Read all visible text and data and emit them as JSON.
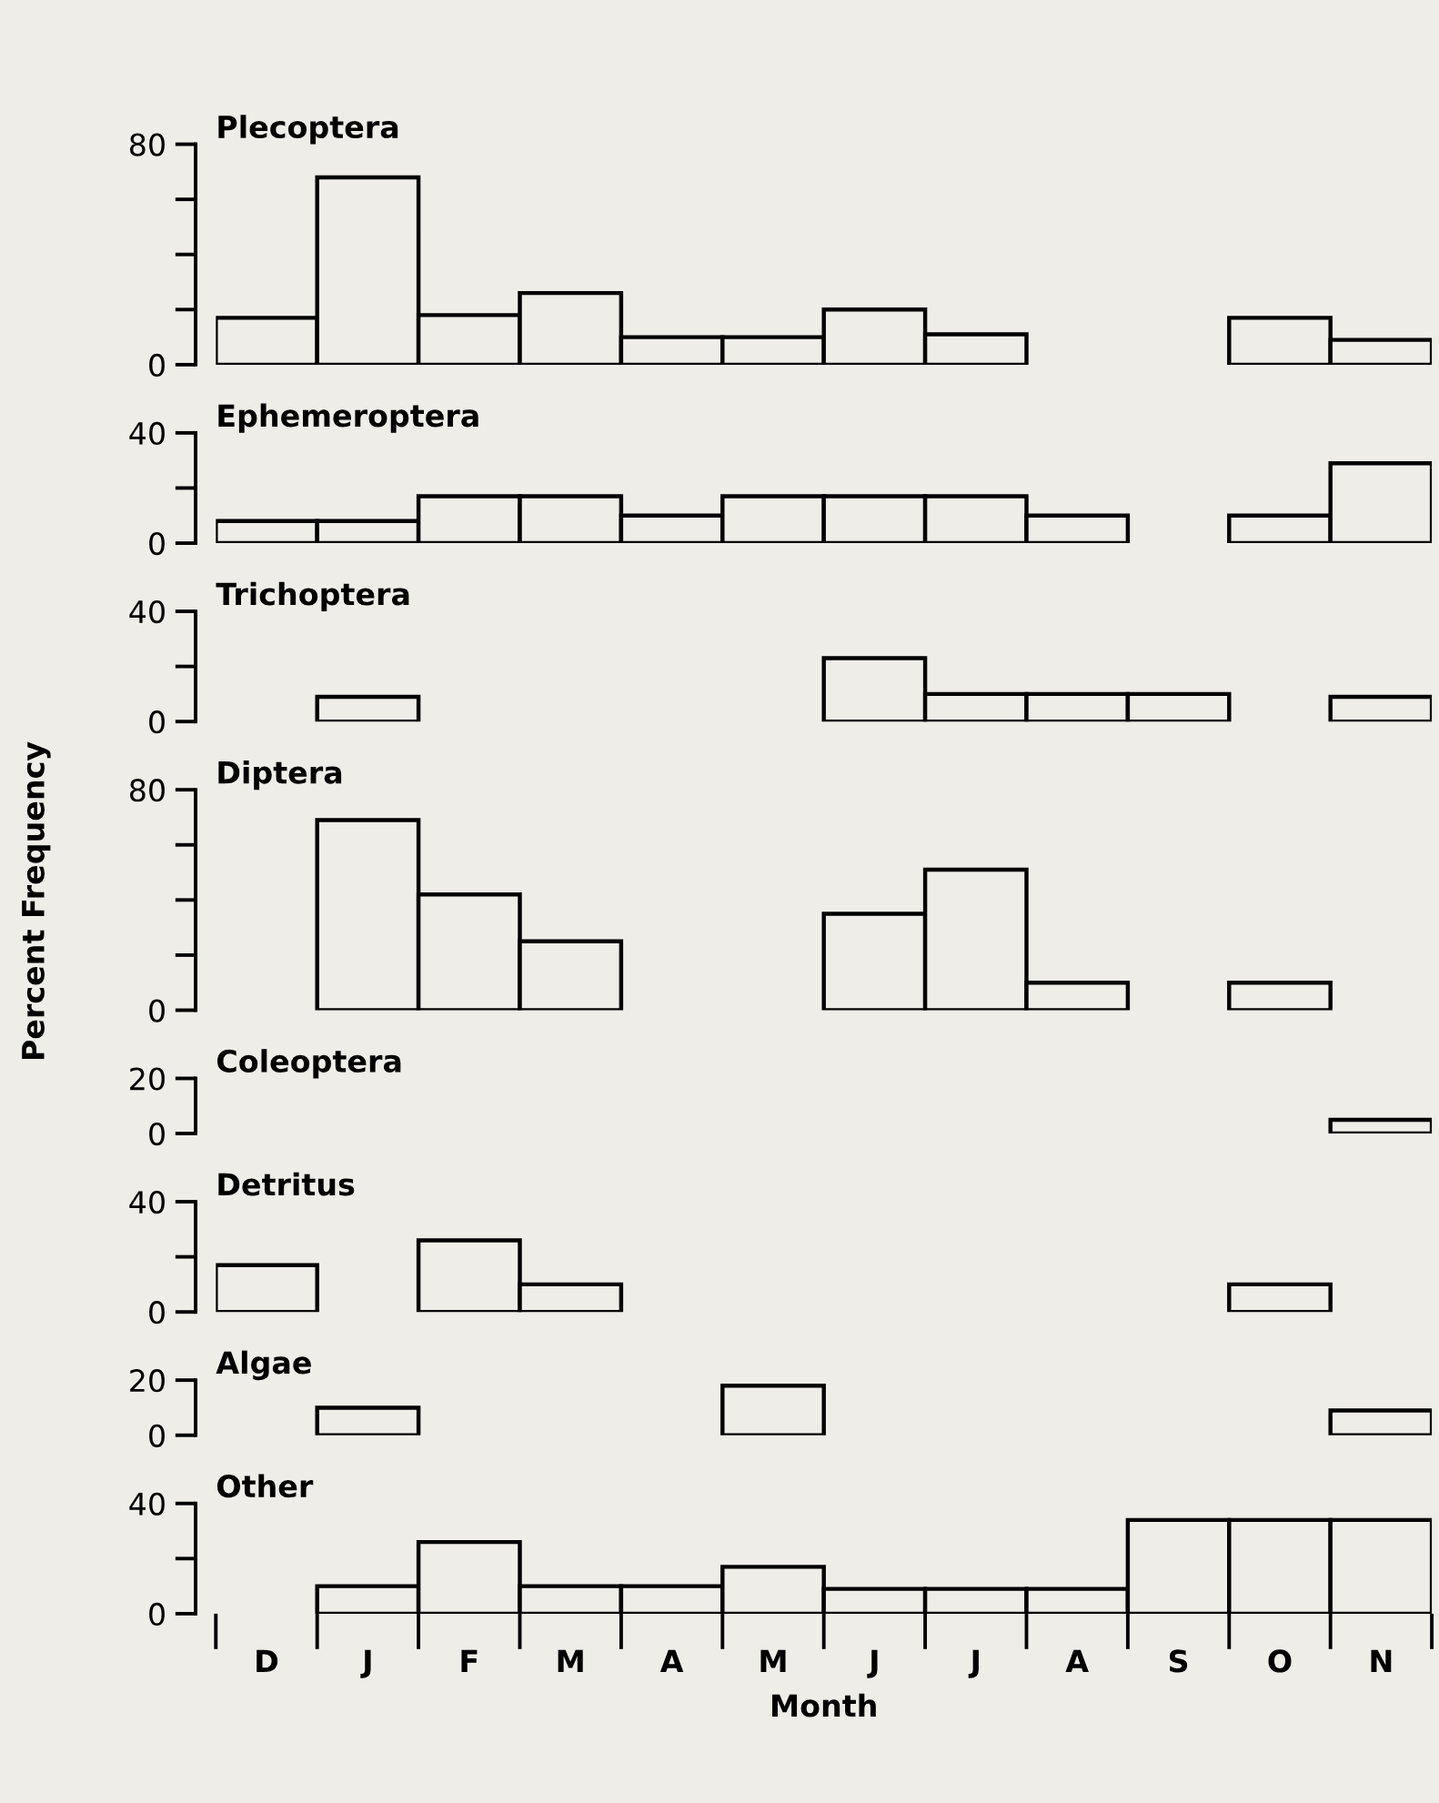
{
  "chart_data": [
    {
      "type": "bar",
      "title": "Plecoptera",
      "categories": [
        "D",
        "J",
        "F",
        "M",
        "A",
        "M",
        "J",
        "J",
        "A",
        "S",
        "O",
        "N"
      ],
      "values": [
        17,
        68,
        18,
        26,
        10,
        10,
        20,
        11,
        null,
        null,
        17,
        9
      ],
      "color": "#000000",
      "ylim": [
        0,
        80
      ],
      "yticks": [
        0,
        {
          "value": 20,
          "label": null
        },
        {
          "value": 40,
          "label": null
        },
        {
          "value": 60,
          "label": null
        },
        80
      ],
      "tick_labels": "y",
      "grid": false,
      "legend": false
    },
    {
      "type": "bar",
      "title": "Ephemeroptera",
      "categories": [
        "D",
        "J",
        "F",
        "M",
        "A",
        "M",
        "J",
        "J",
        "A",
        "S",
        "O",
        "N"
      ],
      "values": [
        8,
        8,
        17,
        17,
        10,
        17,
        17,
        17,
        10,
        null,
        10,
        29
      ],
      "color": "#000000",
      "ylim": [
        0,
        40
      ],
      "yticks": [
        0,
        {
          "value": 20,
          "label": null
        },
        40
      ],
      "tick_labels": "y",
      "grid": false,
      "legend": false
    },
    {
      "type": "bar",
      "title": "Trichoptera",
      "categories": [
        "D",
        "J",
        "F",
        "M",
        "A",
        "M",
        "J",
        "J",
        "A",
        "S",
        "O",
        "N"
      ],
      "values": [
        null,
        9,
        null,
        null,
        null,
        null,
        23,
        10,
        10,
        10,
        null,
        9
      ],
      "color": "#000000",
      "ylim": [
        0,
        40
      ],
      "yticks": [
        0,
        {
          "value": 20,
          "label": null
        },
        40
      ],
      "tick_labels": "y",
      "grid": false,
      "legend": false
    },
    {
      "type": "bar",
      "title": "Diptera",
      "ylabel": "Percent Frequency",
      "categories": [
        "D",
        "J",
        "F",
        "M",
        "A",
        "M",
        "J",
        "J",
        "A",
        "S",
        "O",
        "N"
      ],
      "values": [
        null,
        69,
        42,
        25,
        null,
        null,
        35,
        51,
        10,
        null,
        10,
        null
      ],
      "color": "#000000",
      "ylim": [
        0,
        80
      ],
      "yticks": [
        0,
        {
          "value": 20,
          "label": null
        },
        {
          "value": 40,
          "label": null
        },
        {
          "value": 60,
          "label": null
        },
        80
      ],
      "tick_labels": "y",
      "grid": false,
      "legend": false
    },
    {
      "type": "bar",
      "title": "Coleoptera",
      "categories": [
        "D",
        "J",
        "F",
        "M",
        "A",
        "M",
        "J",
        "J",
        "A",
        "S",
        "O",
        "N"
      ],
      "values": [
        null,
        null,
        null,
        null,
        null,
        null,
        null,
        null,
        null,
        null,
        null,
        5
      ],
      "color": "#000000",
      "ylim": [
        0,
        20
      ],
      "yticks": [
        0,
        20
      ],
      "tick_labels": "y",
      "grid": false,
      "legend": false
    },
    {
      "type": "bar",
      "title": "Detritus",
      "categories": [
        "D",
        "J",
        "F",
        "M",
        "A",
        "M",
        "J",
        "J",
        "A",
        "S",
        "O",
        "N"
      ],
      "values": [
        17,
        null,
        26,
        10,
        null,
        null,
        null,
        null,
        null,
        null,
        10,
        null
      ],
      "color": "#000000",
      "ylim": [
        0,
        40
      ],
      "yticks": [
        0,
        {
          "value": 20,
          "label": null
        },
        40
      ],
      "tick_labels": "y",
      "grid": false,
      "legend": false
    },
    {
      "type": "bar",
      "title": "Algae",
      "categories": [
        "D",
        "J",
        "F",
        "M",
        "A",
        "M",
        "J",
        "J",
        "A",
        "S",
        "O",
        "N"
      ],
      "values": [
        null,
        10,
        null,
        null,
        null,
        18,
        null,
        null,
        null,
        null,
        null,
        9
      ],
      "color": "#000000",
      "ylim": [
        0,
        20
      ],
      "yticks": [
        0,
        20
      ],
      "tick_labels": "y",
      "grid": false,
      "legend": false
    },
    {
      "type": "bar",
      "title": "Other",
      "xlabel": "Month",
      "categories": [
        "D",
        "J",
        "F",
        "M",
        "A",
        "M",
        "J",
        "J",
        "A",
        "S",
        "O",
        "N"
      ],
      "values": [
        null,
        10,
        26,
        10,
        10,
        17,
        9,
        9,
        9,
        34,
        34,
        34
      ],
      "color": "#000000",
      "ylim": [
        0,
        40
      ],
      "yticks": [
        0,
        {
          "value": 20,
          "label": null
        },
        40
      ],
      "grid": false,
      "legend": false
    }
  ]
}
